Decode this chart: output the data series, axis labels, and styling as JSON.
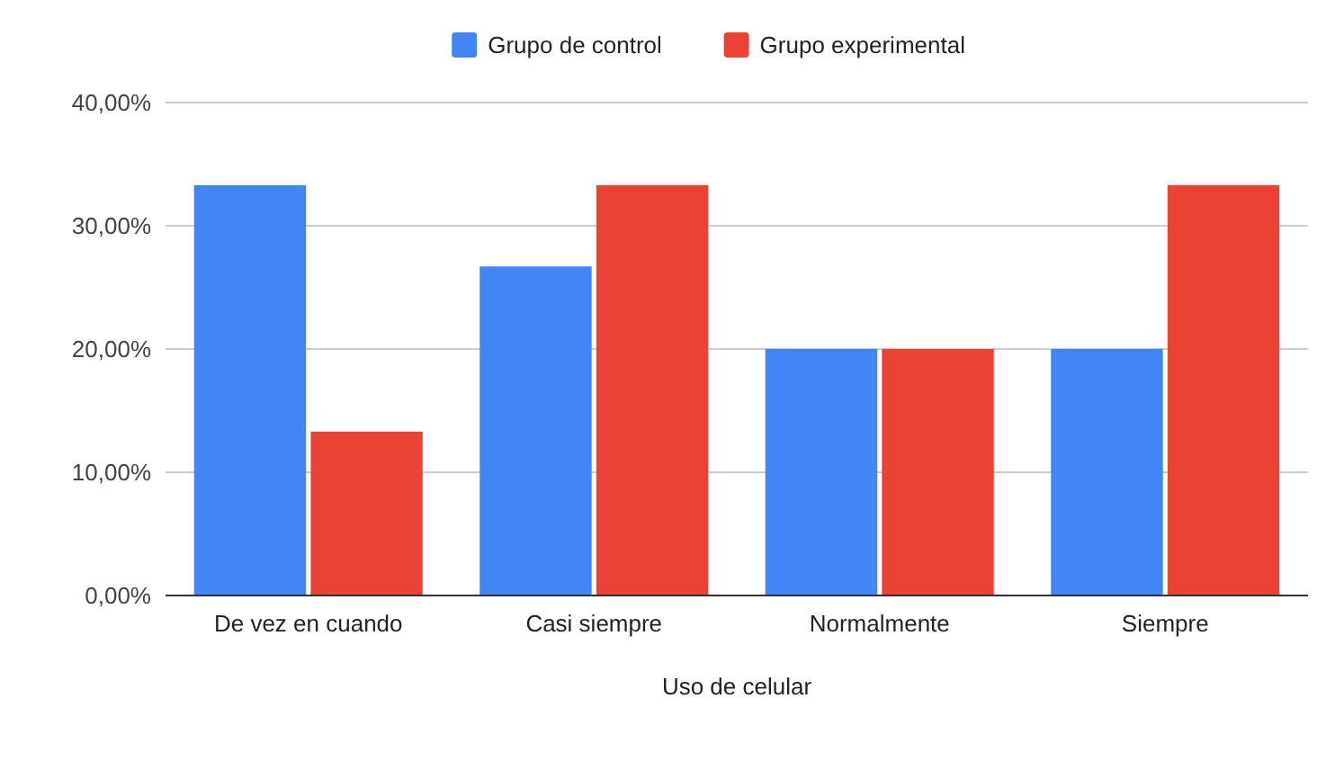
{
  "chart_data": {
    "type": "bar",
    "xlabel": "Uso de celular",
    "categories": [
      "De vez en cuando",
      "Casi siempre",
      "Normalmente",
      "Siempre"
    ],
    "series": [
      {
        "name": "Grupo de control",
        "color": "#4285f4",
        "values": [
          33.3,
          26.7,
          20,
          20
        ]
      },
      {
        "name": "Grupo experimental",
        "color": "#ea4335",
        "values": [
          13.3,
          33.3,
          20,
          33.3
        ]
      }
    ],
    "ylim": [
      0,
      40
    ],
    "yticks": [
      {
        "value": 0,
        "label": "0,00%"
      },
      {
        "value": 10,
        "label": "10,00%"
      },
      {
        "value": 20,
        "label": "20,00%"
      },
      {
        "value": 30,
        "label": "30,00%"
      },
      {
        "value": 40,
        "label": "40,00%"
      }
    ],
    "grid": "y",
    "legend": "top"
  }
}
